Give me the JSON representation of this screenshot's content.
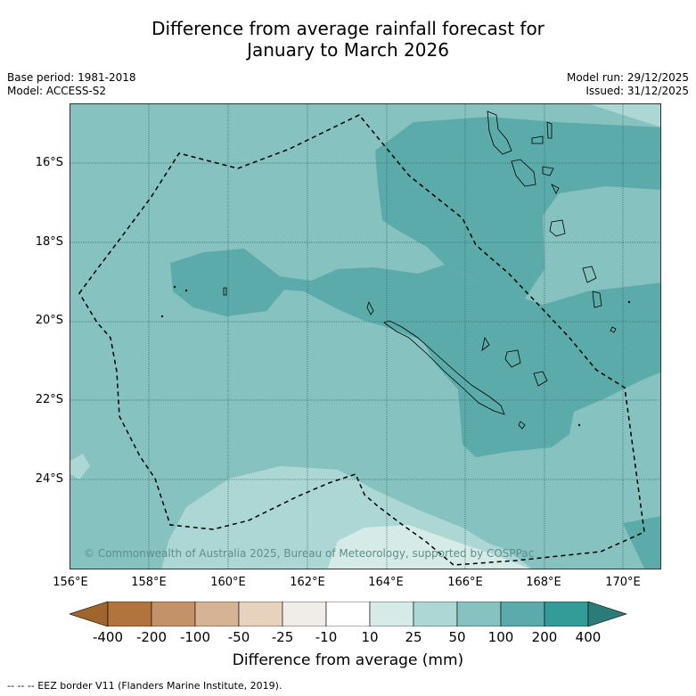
{
  "header": {
    "title_line1": "Difference from average rainfall forecast for",
    "title_line2": "January to March 2026",
    "base_period": "Base period: 1981-2018",
    "model": "Model: ACCESS-S2",
    "model_run": "Model run: 29/12/2025",
    "issued": "Issued: 31/12/2025"
  },
  "map": {
    "lat_labels": [
      "16°S",
      "18°S",
      "20°S",
      "22°S",
      "24°S"
    ],
    "lon_labels": [
      "156°E",
      "158°E",
      "160°E",
      "162°E",
      "164°E",
      "166°E",
      "168°E",
      "170°E"
    ],
    "copyright": "© Commonwealth of Australia 2025, Bureau of Meteorology, supported by COSPPac",
    "colors": {
      "r_10_25": "#d6ebe8",
      "r_25_50": "#acd7d4",
      "r_50_100": "#85c2c0",
      "r_100_200": "#5aabaa",
      "coast": "#000000"
    }
  },
  "legend": {
    "title": "Difference from average (mm)",
    "ticks": [
      "-400",
      "-200",
      "-100",
      "-50",
      "-25",
      "-10",
      "10",
      "25",
      "50",
      "100",
      "200",
      "400"
    ],
    "colors": [
      "#a0652c",
      "#b0743c",
      "#c49268",
      "#d6b394",
      "#e6d2bd",
      "#f0ece8",
      "#ffffff",
      "#d6ebe8",
      "#acd7d4",
      "#85c2c0",
      "#5aabaa",
      "#339c98",
      "#2b7c78"
    ]
  },
  "footnote": "--  --  -- EEZ border V11 (Flanders Marine Institute, 2019)."
}
